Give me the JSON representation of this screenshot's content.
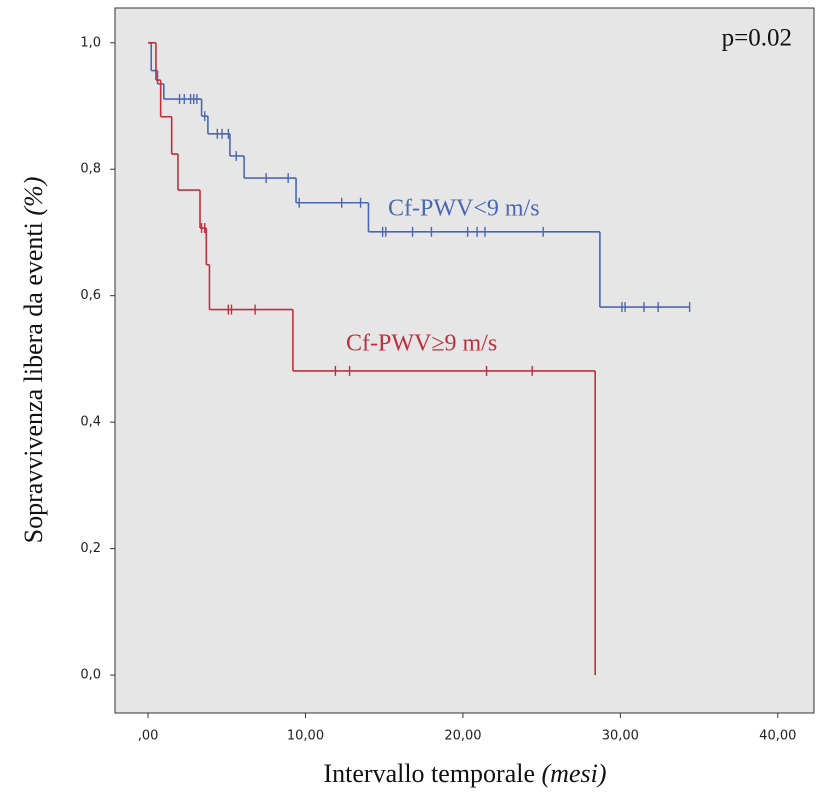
{
  "chart_data": {
    "type": "kaplan-meier",
    "annotation": "p=0.02",
    "xlabel": {
      "text": "Intervallo temporale",
      "unit": "(mesi)"
    },
    "ylabel": {
      "text": "Sopravvivenza libera da eventi",
      "unit": "(%)"
    },
    "xlim": [
      -2.1,
      42.3
    ],
    "ylim": [
      -0.06,
      1.055
    ],
    "xticks": [
      {
        "value": 0,
        "label": ",00"
      },
      {
        "value": 10,
        "label": "10,00"
      },
      {
        "value": 20,
        "label": "20,00"
      },
      {
        "value": 30,
        "label": "30,00"
      },
      {
        "value": 40,
        "label": "40,00"
      }
    ],
    "yticks": [
      {
        "value": 0,
        "label": "0,0"
      },
      {
        "value": 0.2,
        "label": "0,2"
      },
      {
        "value": 0.4,
        "label": "0,4"
      },
      {
        "value": 0.6,
        "label": "0,6"
      },
      {
        "value": 0.8,
        "label": "0,8"
      },
      {
        "value": 1,
        "label": "1,0"
      }
    ],
    "background": "#e6e6e6",
    "series": [
      {
        "name": "Cf-PWV<9 m/s",
        "color": "#4a68b2",
        "x": [
          0,
          0.2,
          0.6,
          1.0,
          3.4,
          3.8,
          5.2,
          6.1,
          9.4,
          14.0,
          28.7
        ],
        "values": [
          1.0,
          0.956,
          0.935,
          0.911,
          0.884,
          0.856,
          0.821,
          0.786,
          0.747,
          0.701,
          0.582
        ],
        "censored": {
          "x": [
            2.0,
            2.3,
            2.7,
            2.9,
            3.1,
            3.6,
            4.4,
            4.7,
            5.1,
            5.6,
            7.5,
            8.9,
            9.6,
            12.3,
            13.5,
            14.9,
            15.1,
            16.8,
            18.0,
            20.3,
            20.9,
            21.4,
            25.1,
            30.1,
            30.3,
            31.5,
            32.4,
            34.4
          ],
          "values": [
            0.911,
            0.911,
            0.911,
            0.911,
            0.911,
            0.884,
            0.856,
            0.856,
            0.856,
            0.821,
            0.786,
            0.786,
            0.747,
            0.747,
            0.747,
            0.701,
            0.701,
            0.701,
            0.701,
            0.701,
            0.701,
            0.701,
            0.701,
            0.582,
            0.582,
            0.582,
            0.582,
            0.582
          ]
        }
      },
      {
        "name": "Cf-PWV≥9 m/s",
        "color": "#c0303c",
        "x": [
          0,
          0.5,
          0.8,
          1.5,
          1.9,
          3.3,
          3.7,
          3.9,
          9.2,
          28.4
        ],
        "values": [
          1.0,
          0.941,
          0.883,
          0.824,
          0.767,
          0.707,
          0.649,
          0.578,
          0.481,
          0.0
        ],
        "censored": {
          "x": [
            3.4,
            3.6,
            5.1,
            5.3,
            6.8,
            11.9,
            12.8,
            21.5,
            24.4
          ],
          "values": [
            0.707,
            0.707,
            0.578,
            0.578,
            0.578,
            0.481,
            0.481,
            0.481,
            0.481
          ]
        }
      }
    ]
  }
}
